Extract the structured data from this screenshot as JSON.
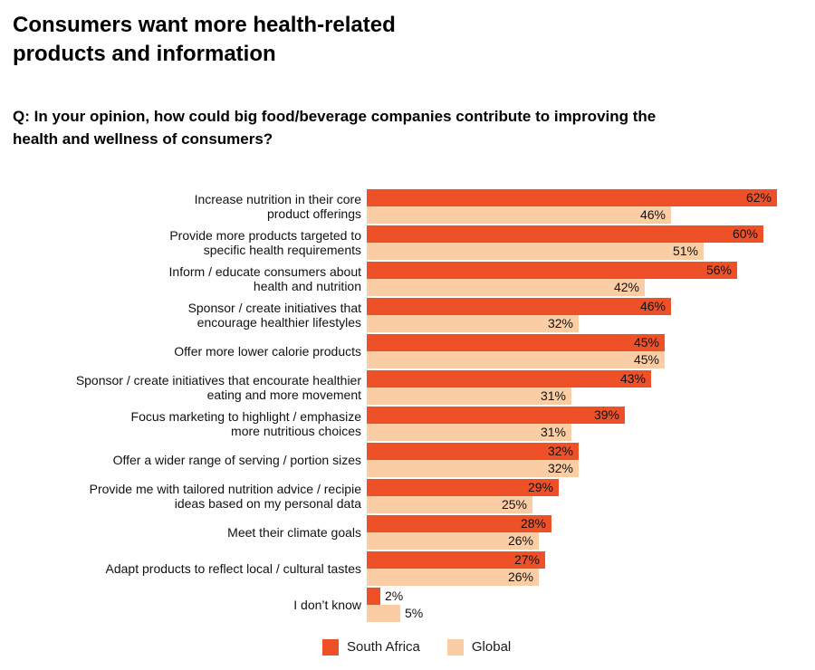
{
  "header": {
    "title": "Consumers want more health-related\nproducts and information",
    "question": "Q: In your opinion, how could big food/beverage companies contribute to improving the\nhealth and wellness of consumers?"
  },
  "colors": {
    "south_africa": "#EE5127",
    "global": "#FACDA5",
    "text": "#111111",
    "background": "#FFFFFF"
  },
  "chart_data": {
    "type": "bar",
    "orientation": "horizontal",
    "unit": "%",
    "xlim": [
      0,
      62
    ],
    "grid": "off",
    "value_label_position": "inside-end (outside-end for small bars)",
    "legend_position": "bottom-center",
    "categories": [
      "Increase nutrition in their core\nproduct offerings",
      "Provide more products targeted to\nspecific health requirements",
      "Inform / educate consumers about\nhealth and nutrition",
      "Sponsor / create initiatives that\nencourage healthier lifestyles",
      "Offer more lower calorie products",
      "Sponsor / create initiatives that encourate healthier\neating and more movement",
      "Focus marketing to highlight / emphasize\nmore nutritious choices",
      "Offer a wider range of serving / portion sizes",
      "Provide me with tailored nutrition advice / recipie\nideas based on my personal data",
      "Meet their climate goals",
      "Adapt products to reflect local / cultural tastes",
      "I don’t know"
    ],
    "series": [
      {
        "name": "South Africa",
        "key": "south-africa",
        "color": "#EE5127",
        "values": [
          62,
          60,
          56,
          46,
          45,
          43,
          39,
          32,
          29,
          28,
          27,
          2
        ]
      },
      {
        "name": "Global",
        "key": "global",
        "color": "#FACDA5",
        "values": [
          46,
          51,
          42,
          32,
          45,
          31,
          31,
          32,
          25,
          26,
          26,
          5
        ]
      }
    ]
  }
}
